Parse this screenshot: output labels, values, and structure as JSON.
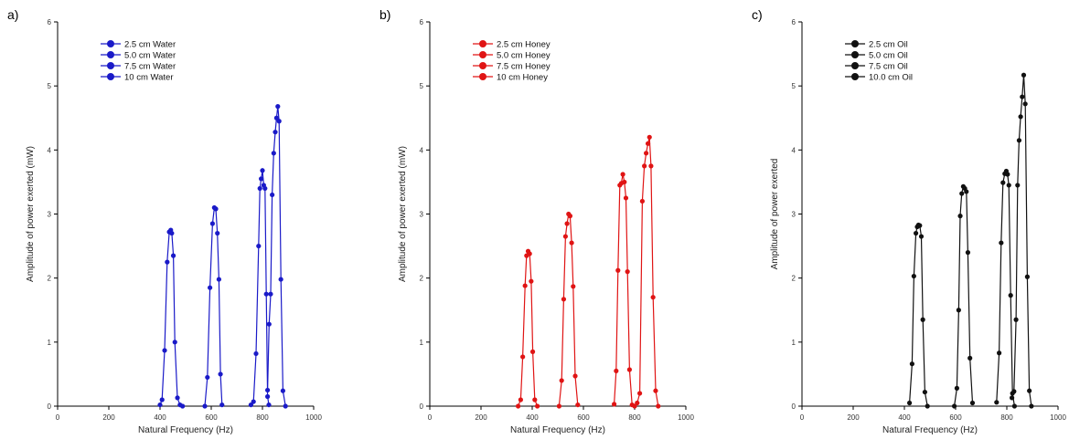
{
  "chart_data": [
    {
      "panel_label": "a)",
      "type": "line",
      "title": "",
      "xlabel": "Natural Frequency (Hz)",
      "ylabel": "Amplitude of power exerted (mW)",
      "xlim": [
        0,
        1000
      ],
      "ylim": [
        0,
        6
      ],
      "xticks": [
        "0",
        "200",
        "400",
        "600",
        "800",
        "1000"
      ],
      "yticks": [
        "0",
        "1",
        "2",
        "3",
        "4",
        "5",
        "6"
      ],
      "grid": false,
      "legend_position": "top-left",
      "color": "#1a1ac8",
      "series": [
        {
          "name": "2.5 cm Water",
          "x": [
            400,
            408,
            418,
            428,
            436,
            442,
            446,
            452,
            458,
            468,
            478,
            488
          ],
          "y": [
            0.02,
            0.1,
            0.87,
            2.25,
            2.72,
            2.75,
            2.7,
            2.35,
            1.0,
            0.13,
            0.02,
            0.0
          ]
        },
        {
          "name": "5.0 cm Water",
          "x": [
            575,
            585,
            595,
            605,
            612,
            618,
            624,
            630,
            636,
            642
          ],
          "y": [
            0.0,
            0.45,
            1.85,
            2.85,
            3.1,
            3.08,
            2.7,
            1.98,
            0.5,
            0.02
          ]
        },
        {
          "name": "7.5 cm Water",
          "x": [
            755,
            765,
            775,
            785,
            790,
            795,
            800,
            805,
            810,
            815,
            820,
            825
          ],
          "y": [
            0.02,
            0.07,
            0.82,
            2.5,
            3.4,
            3.55,
            3.68,
            3.45,
            3.4,
            1.75,
            0.15,
            0.02
          ]
        },
        {
          "name": "10 cm Water",
          "x": [
            820,
            826,
            832,
            838,
            844,
            850,
            855,
            860,
            865,
            872,
            880,
            890
          ],
          "y": [
            0.25,
            1.28,
            1.75,
            3.3,
            3.95,
            4.28,
            4.5,
            4.68,
            4.45,
            1.98,
            0.24,
            0.0
          ]
        }
      ]
    },
    {
      "panel_label": "b)",
      "type": "line",
      "title": "",
      "xlabel": "Natural Frequency (Hz)",
      "ylabel": "Amplitude of power exerted (mW)",
      "xlim": [
        0,
        1000
      ],
      "ylim": [
        0,
        6
      ],
      "xticks": [
        "0",
        "200",
        "400",
        "600",
        "800",
        "1000"
      ],
      "yticks": [
        "0",
        "1",
        "2",
        "3",
        "4",
        "5",
        "6"
      ],
      "grid": false,
      "legend_position": "top-left",
      "color": "#e01414",
      "series": [
        {
          "name": "2.5 cm Honey",
          "x": [
            345,
            355,
            363,
            372,
            378,
            384,
            390,
            396,
            402,
            410,
            420
          ],
          "y": [
            0.0,
            0.1,
            0.77,
            1.88,
            2.35,
            2.42,
            2.38,
            1.95,
            0.85,
            0.1,
            0.0
          ]
        },
        {
          "name": "5.0 cm Honey",
          "x": [
            505,
            515,
            523,
            530,
            536,
            542,
            548,
            554,
            560,
            568,
            578
          ],
          "y": [
            0.0,
            0.4,
            1.67,
            2.65,
            2.85,
            3.0,
            2.97,
            2.55,
            1.87,
            0.47,
            0.02
          ]
        },
        {
          "name": "7.5 cm Honey",
          "x": [
            720,
            728,
            735,
            742,
            748,
            754,
            760,
            766,
            772,
            780,
            790
          ],
          "y": [
            0.03,
            0.55,
            2.12,
            3.45,
            3.48,
            3.62,
            3.5,
            3.25,
            2.1,
            0.57,
            0.02
          ]
        },
        {
          "name": "10 cm Honey",
          "x": [
            800,
            810,
            820,
            830,
            838,
            845,
            852,
            858,
            864,
            872,
            882,
            892
          ],
          "y": [
            0.0,
            0.05,
            0.2,
            3.2,
            3.75,
            3.95,
            4.1,
            4.2,
            3.75,
            1.7,
            0.24,
            0.0
          ]
        }
      ]
    },
    {
      "panel_label": "c)",
      "type": "line",
      "title": "",
      "xlabel": "Natural Frequency (Hz)",
      "ylabel": "Amplitude of power exerted",
      "xlim": [
        0,
        1000
      ],
      "ylim": [
        0,
        6
      ],
      "xticks": [
        "0",
        "200",
        "400",
        "600",
        "800",
        "1000"
      ],
      "yticks": [
        "0",
        "1",
        "2",
        "3",
        "4",
        "5",
        "6"
      ],
      "grid": false,
      "legend_position": "top-left",
      "color": "#111111",
      "series": [
        {
          "name": "2.5 cm Oil",
          "x": [
            420,
            430,
            437,
            445,
            450,
            455,
            460,
            466,
            472,
            480,
            490
          ],
          "y": [
            0.05,
            0.66,
            2.03,
            2.7,
            2.8,
            2.83,
            2.82,
            2.65,
            1.35,
            0.22,
            0.0
          ]
        },
        {
          "name": "5.0 cm Oil",
          "x": [
            595,
            605,
            612,
            618,
            624,
            630,
            636,
            642,
            648,
            656,
            666
          ],
          "y": [
            0.0,
            0.28,
            1.5,
            2.97,
            3.32,
            3.43,
            3.4,
            3.35,
            2.4,
            0.75,
            0.05
          ]
        },
        {
          "name": "7.5 cm Oil",
          "x": [
            760,
            770,
            778,
            785,
            792,
            798,
            803,
            808,
            815,
            822,
            830
          ],
          "y": [
            0.06,
            0.83,
            2.55,
            3.49,
            3.63,
            3.67,
            3.62,
            3.45,
            1.73,
            0.2,
            0.0
          ]
        },
        {
          "name": "10.0 cm Oil",
          "x": [
            820,
            828,
            836,
            842,
            848,
            854,
            860,
            866,
            872,
            880,
            888,
            896
          ],
          "y": [
            0.13,
            0.23,
            1.35,
            3.45,
            4.15,
            4.52,
            4.83,
            5.17,
            4.72,
            2.02,
            0.24,
            0.0
          ]
        }
      ]
    }
  ]
}
